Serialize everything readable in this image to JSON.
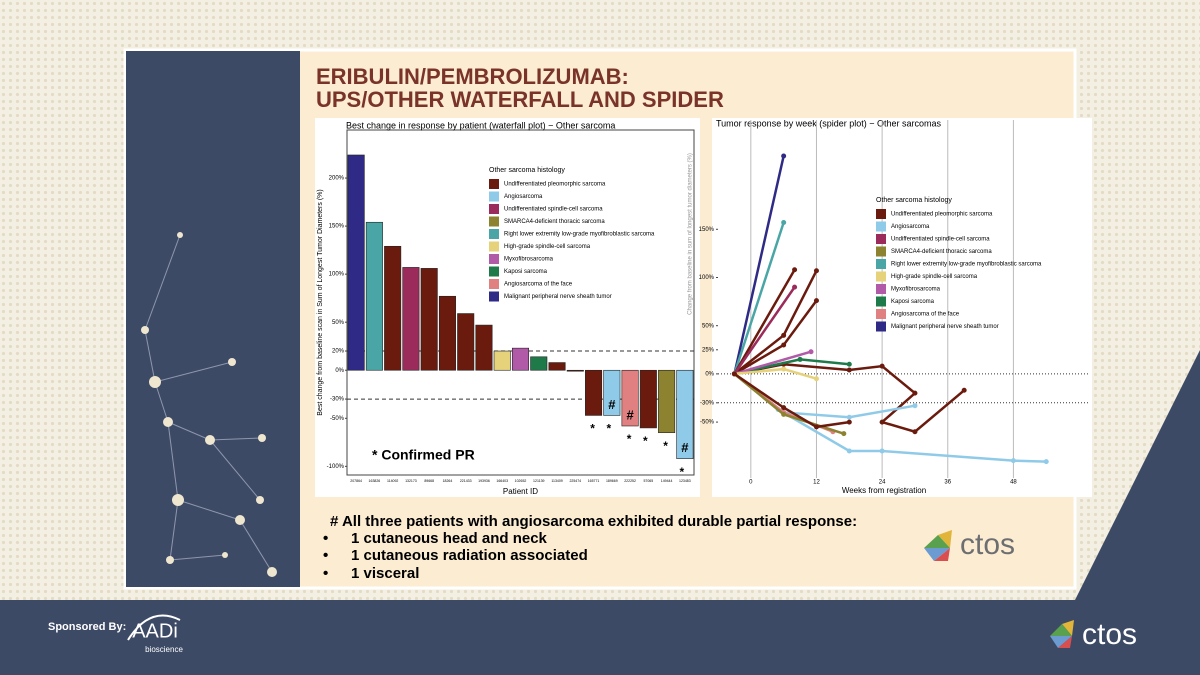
{
  "slide": {
    "title_lines": [
      "ERIBULIN/PEMBROLIZUMAB:",
      "UPS/OTHER WATERFALL AND SPIDER"
    ],
    "footnote": "# All three patients with angiosarcoma exhibited durable partial response:",
    "bullets": [
      "1 cutaneous head and neck",
      "1 cutaneous radiation associated",
      "1 visceral"
    ],
    "logo": "ctos",
    "sponsor_label": "Sponsored By:",
    "sponsor_name": "AADi",
    "sponsor_sub": "bioscience",
    "footer_logo": "ctos"
  },
  "chart_data": [
    {
      "type": "bar",
      "title": "Best change in response by patient (waterfall plot) − Other sarcoma",
      "ylabel": "Best change from baseline scan in Sum of Longest Tumor Diameters (%)",
      "xlabel": "Patient ID",
      "categories": [
        "207864",
        "163826",
        "114092",
        "132173",
        "89668",
        "18264",
        "221433",
        "193936",
        "166403",
        "102652",
        "121139",
        "113409",
        "225474",
        "165771",
        "189669",
        "222252",
        "57065",
        "149444",
        "123483"
      ],
      "values": [
        224,
        154,
        129,
        107,
        106,
        77,
        59,
        47,
        20,
        23,
        14,
        8,
        -1,
        -47,
        -47,
        -58,
        -60,
        -65,
        -92
      ],
      "colors": [
        "#2e2a85",
        "#4aa6a6",
        "#6b1a0e",
        "#9b2b5a",
        "#6b1a0e",
        "#6b1a0e",
        "#6b1a0e",
        "#6b1a0e",
        "#e6d27a",
        "#b05aa8",
        "#1f7a4a",
        "#6b1a0e",
        "#6b1a0e",
        "#6b1a0e",
        "#8fcbe8",
        "#e08080",
        "#6b1a0e",
        "#8c8230",
        "#8fcbe8"
      ],
      "labels_on_bar": [
        null,
        null,
        null,
        null,
        null,
        null,
        null,
        null,
        null,
        null,
        null,
        null,
        null,
        null,
        "#",
        "#",
        null,
        null,
        "#"
      ],
      "labels_below_bar": [
        null,
        null,
        null,
        null,
        null,
        null,
        null,
        null,
        null,
        null,
        null,
        null,
        null,
        "*",
        "*",
        "*",
        "*",
        "*",
        "*"
      ],
      "note": "* Confirmed PR",
      "ylim": [
        -109,
        250
      ],
      "yticks": [
        {
          "value": 200,
          "label": "200%"
        },
        {
          "value": 150,
          "label": "150%"
        },
        {
          "value": 100,
          "label": "100%"
        },
        {
          "value": 50,
          "label": "50%"
        },
        {
          "value": 20,
          "label": "20%"
        },
        {
          "value": 0,
          "label": "0%"
        },
        {
          "value": -30,
          "label": "-30%"
        },
        {
          "value": -50,
          "label": "-50%"
        },
        {
          "value": -100,
          "label": "-100%"
        }
      ],
      "reference_lines": [
        20,
        -30
      ],
      "legend": {
        "title": "Other sarcoma histology",
        "items": [
          {
            "name": "Undifferentiated pleomorphic sarcoma",
            "color": "#6b1a0e"
          },
          {
            "name": "Angiosarcoma",
            "color": "#8fcbe8"
          },
          {
            "name": "Undifferentiated spindle-cell sarcoma",
            "color": "#9b2b5a"
          },
          {
            "name": "SMARCA4-deficient thoracic sarcoma",
            "color": "#8c8230"
          },
          {
            "name": "Right lower extremity low-grade myofibroblastic sarcoma",
            "color": "#4aa6a6"
          },
          {
            "name": "High-grade spindle-cell sarcoma",
            "color": "#e6d27a"
          },
          {
            "name": "Myxofibrosarcoma",
            "color": "#b05aa8"
          },
          {
            "name": "Kaposi sarcoma",
            "color": "#1f7a4a"
          },
          {
            "name": "Angiosarcoma of the face",
            "color": "#e08080"
          },
          {
            "name": "Malignant peripheral nerve sheath tumor",
            "color": "#2e2a85"
          }
        ]
      }
    },
    {
      "type": "line",
      "title": "Tumor response by week (spider plot) − Other sarcomas",
      "ylabel": "Change from baseline in sum of longest tumor diameters (%)",
      "xlabel": "Weeks from registration",
      "series": [
        {
          "color": "#2e2a85",
          "x": [
            -3,
            6
          ],
          "values": [
            0,
            226
          ]
        },
        {
          "color": "#4aa6a6",
          "x": [
            -3,
            6
          ],
          "values": [
            0,
            157
          ]
        },
        {
          "color": "#6b1a0e",
          "x": [
            -3,
            8
          ],
          "values": [
            0,
            108
          ]
        },
        {
          "color": "#6b1a0e",
          "x": [
            -3,
            6,
            12
          ],
          "values": [
            0,
            40,
            107
          ]
        },
        {
          "color": "#6b1a0e",
          "x": [
            -3,
            6,
            12
          ],
          "values": [
            0,
            30,
            76
          ]
        },
        {
          "color": "#9b2b5a",
          "x": [
            -3,
            8
          ],
          "values": [
            0,
            90
          ]
        },
        {
          "color": "#6b1a0e",
          "x": [
            -3,
            6,
            18,
            24,
            30,
            24,
            30,
            39
          ],
          "values": [
            0,
            10,
            4,
            8,
            -20,
            -50,
            -60,
            -17
          ]
        },
        {
          "color": "#1f7a4a",
          "x": [
            -3,
            9,
            18
          ],
          "values": [
            0,
            15,
            10
          ]
        },
        {
          "color": "#b05aa8",
          "x": [
            -3,
            11
          ],
          "values": [
            0,
            23
          ]
        },
        {
          "color": "#e6d27a",
          "x": [
            -3,
            6,
            12
          ],
          "values": [
            0,
            5,
            -5
          ]
        },
        {
          "color": "#8fcbe8",
          "x": [
            -3,
            5,
            18,
            24,
            48,
            54
          ],
          "values": [
            0,
            -37,
            -80,
            -80,
            -90,
            -91
          ]
        },
        {
          "color": "#8fcbe8",
          "x": [
            -3,
            6,
            18,
            30
          ],
          "values": [
            0,
            -40,
            -45,
            -33
          ]
        },
        {
          "color": "#e08080",
          "x": [
            -3,
            6,
            15
          ],
          "values": [
            0,
            -40,
            -60
          ]
        },
        {
          "color": "#8c8230",
          "x": [
            -3,
            6,
            17
          ],
          "values": [
            0,
            -42,
            -62
          ]
        },
        {
          "color": "#6b1a0e",
          "x": [
            -3,
            6,
            12,
            18
          ],
          "values": [
            0,
            -35,
            -55,
            -50
          ]
        }
      ],
      "xlim": [
        -6,
        62
      ],
      "ylim": [
        -108,
        253
      ],
      "xticks": [
        0,
        12,
        24,
        36,
        48
      ],
      "yticks": [
        {
          "value": 150,
          "label": "150%"
        },
        {
          "value": 100,
          "label": "100%"
        },
        {
          "value": 50,
          "label": "50%"
        },
        {
          "value": 25,
          "label": "25%"
        },
        {
          "value": 0,
          "label": "0%"
        },
        {
          "value": -30,
          "label": "-30%"
        },
        {
          "value": -50,
          "label": "-50%"
        }
      ],
      "reference_lines": [
        0,
        -30
      ],
      "grid": true,
      "legend": {
        "title": "Other sarcoma histology",
        "items": [
          {
            "name": "Undifferentiated pleomorphic sarcoma",
            "color": "#6b1a0e"
          },
          {
            "name": "Angiosarcoma",
            "color": "#8fcbe8"
          },
          {
            "name": "Undifferentiated spindle-cell sarcoma",
            "color": "#9b2b5a"
          },
          {
            "name": "SMARCA4-deficient thoracic sarcoma",
            "color": "#8c8230"
          },
          {
            "name": "Right lower extremity low-grade myofibroblastic sarcoma",
            "color": "#4aa6a6"
          },
          {
            "name": "High-grade spindle-cell sarcoma",
            "color": "#e6d27a"
          },
          {
            "name": "Myxofibrosarcoma",
            "color": "#b05aa8"
          },
          {
            "name": "Kaposi sarcoma",
            "color": "#1f7a4a"
          },
          {
            "name": "Angiosarcoma of the face",
            "color": "#e08080"
          },
          {
            "name": "Malignant peripheral nerve sheath tumor",
            "color": "#2e2a85"
          }
        ]
      }
    }
  ]
}
